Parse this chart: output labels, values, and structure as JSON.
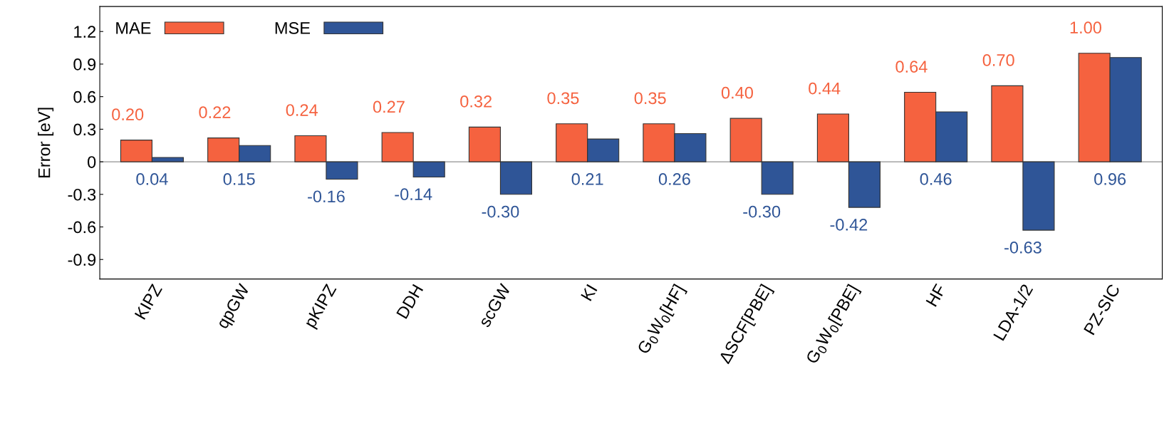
{
  "chart_data": {
    "type": "bar",
    "ylabel": "Error [eV]",
    "categories": [
      "KIPZ",
      "qpGW",
      "pKIPZ",
      "DDH",
      "scGW",
      "KI",
      "G$_{0}$W$_{0}$[HF]",
      "ΔSCF[PBE]",
      "G$_{0}$W$_{0}$[PBE]",
      "HF",
      "LDA-1/2",
      "PZ-SIC"
    ],
    "series": [
      {
        "name": "MAE",
        "color": "#f5623f",
        "values": [
          0.2,
          0.22,
          0.24,
          0.27,
          0.32,
          0.35,
          0.35,
          0.4,
          0.44,
          0.64,
          0.7,
          1.0
        ],
        "value_labels": [
          "0.20",
          "0.22",
          "0.24",
          "0.27",
          "0.32",
          "0.35",
          "0.35",
          "0.40",
          "0.44",
          "0.64",
          "0.70",
          "1.00"
        ]
      },
      {
        "name": "MSE",
        "color": "#2f5597",
        "values": [
          0.04,
          0.15,
          -0.16,
          -0.14,
          -0.3,
          0.21,
          0.26,
          -0.3,
          -0.42,
          0.46,
          -0.63,
          0.96
        ],
        "value_labels": [
          "0.04",
          "0.15",
          "-0.16",
          "-0.14",
          "-0.30",
          "0.21",
          "0.26",
          "-0.30",
          "-0.42",
          "0.46",
          "-0.63",
          "0.96"
        ]
      }
    ],
    "ylim": [
      -1.08,
      1.43
    ],
    "yticks": [
      -0.9,
      -0.6,
      -0.3,
      0,
      0.3,
      0.6,
      0.9,
      1.2
    ],
    "ref_lines": [
      {
        "axis": "y",
        "value": 0,
        "color": "#909090"
      }
    ],
    "legend": "top left",
    "grid": false
  }
}
